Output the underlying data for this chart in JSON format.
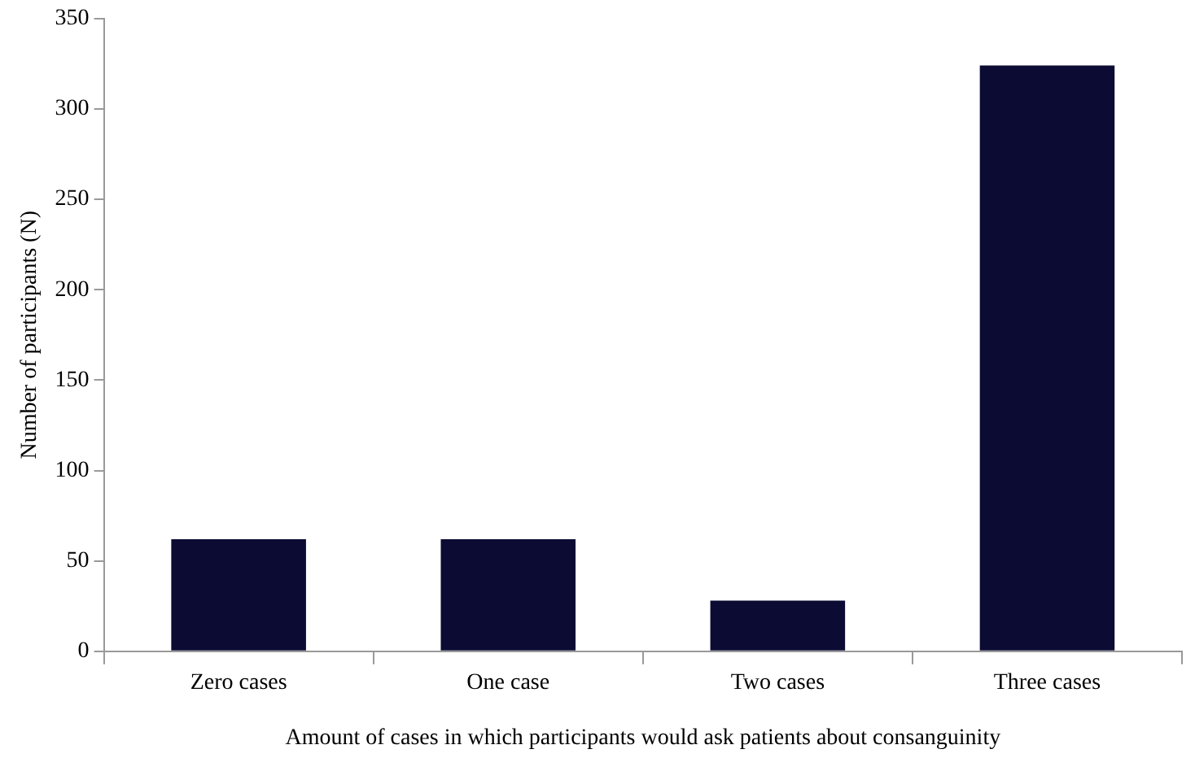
{
  "chart_data": {
    "type": "bar",
    "xlabel": "Amount of cases in which participants would ask patients about consanguinity",
    "ylabel": "Number of participants (N)",
    "categories": [
      "Zero cases",
      "One case",
      "Two cases",
      "Three cases"
    ],
    "values": [
      62,
      62,
      28,
      324
    ],
    "color": "#0b0b33",
    "ylim": [
      0,
      350
    ],
    "yticks": [
      0,
      50,
      100,
      150,
      200,
      250,
      300,
      350
    ],
    "grid": false,
    "legend": false
  }
}
